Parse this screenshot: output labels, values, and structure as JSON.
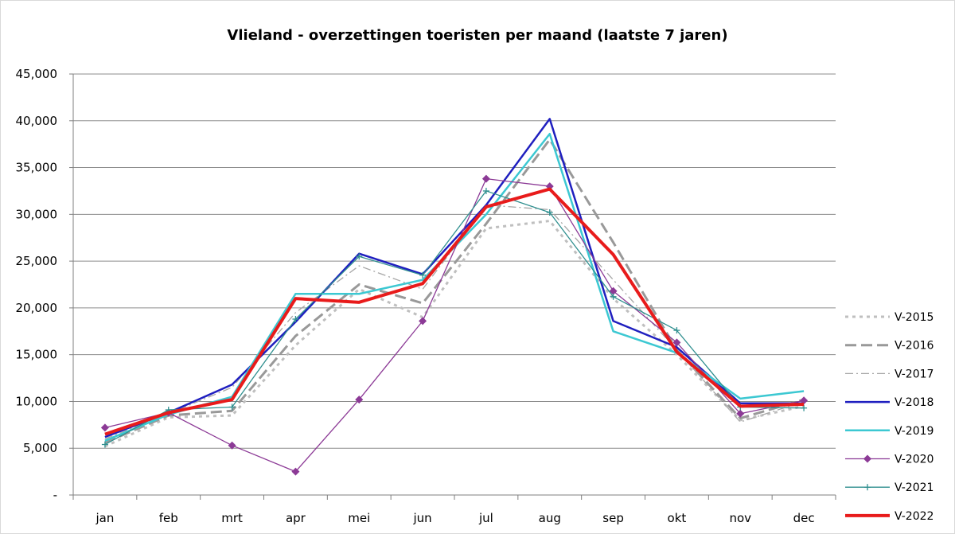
{
  "chart_data": {
    "type": "line",
    "title": "Vlieland - overzettingen toeristen per maand (laatste 7 jaren)",
    "xlabel": "",
    "ylabel": "",
    "categories": [
      "jan",
      "feb",
      "mrt",
      "apr",
      "mei",
      "jun",
      "jul",
      "aug",
      "sep",
      "okt",
      "nov",
      "dec"
    ],
    "ylim": [
      0,
      45000
    ],
    "yticks": [
      0,
      5000,
      10000,
      15000,
      20000,
      25000,
      30000,
      35000,
      40000,
      45000
    ],
    "ytick_labels": [
      "-",
      "5,000",
      "10,000",
      "15,000",
      "20,000",
      "25,000",
      "30,000",
      "35,000",
      "40,000",
      "45,000"
    ],
    "grid": true,
    "legend_position": "right",
    "series": [
      {
        "name": "V-2015",
        "color": "#bfbfbf",
        "style": "dotted",
        "marker": "none",
        "values": [
          5200,
          8300,
          8500,
          16000,
          22000,
          19000,
          28500,
          29300,
          21000,
          15000,
          8000,
          9500
        ]
      },
      {
        "name": "V-2016",
        "color": "#999999",
        "style": "dashed",
        "marker": "none",
        "values": [
          5600,
          8500,
          9000,
          17000,
          22500,
          20500,
          29000,
          38000,
          27000,
          15500,
          8200,
          10200
        ]
      },
      {
        "name": "V-2017",
        "color": "#a6a6a6",
        "style": "dashdot",
        "marker": "none",
        "values": [
          6000,
          8700,
          11500,
          19500,
          24500,
          22000,
          31000,
          30500,
          23000,
          15500,
          7800,
          10000
        ]
      },
      {
        "name": "V-2018",
        "color": "#1f1fbf",
        "style": "solid",
        "marker": "none",
        "values": [
          6200,
          8800,
          11800,
          18500,
          25800,
          23600,
          31000,
          40200,
          18600,
          15800,
          9800,
          9800
        ]
      },
      {
        "name": "V-2019",
        "color": "#3cc8d2",
        "style": "solid",
        "marker": "none",
        "values": [
          5800,
          8600,
          10500,
          21500,
          21500,
          23000,
          30000,
          38600,
          17500,
          15200,
          10300,
          11100
        ]
      },
      {
        "name": "V-2020",
        "color": "#8c3a96",
        "style": "solid",
        "marker": "diamond",
        "values": [
          7200,
          8800,
          5300,
          2500,
          10200,
          18600,
          33800,
          33000,
          21800,
          16300,
          8700,
          10100
        ]
      },
      {
        "name": "V-2021",
        "color": "#2f8f8f",
        "style": "solid",
        "marker": "plus",
        "values": [
          5400,
          9100,
          9400,
          18800,
          25500,
          23500,
          32500,
          30200,
          21200,
          17600,
          9400,
          9300
        ]
      },
      {
        "name": "V-2022",
        "color": "#e81b1b",
        "style": "solid",
        "marker": "none",
        "values": [
          6500,
          8800,
          10200,
          21000,
          20600,
          22600,
          30800,
          32700,
          25700,
          15300,
          9500,
          9700
        ]
      }
    ]
  }
}
